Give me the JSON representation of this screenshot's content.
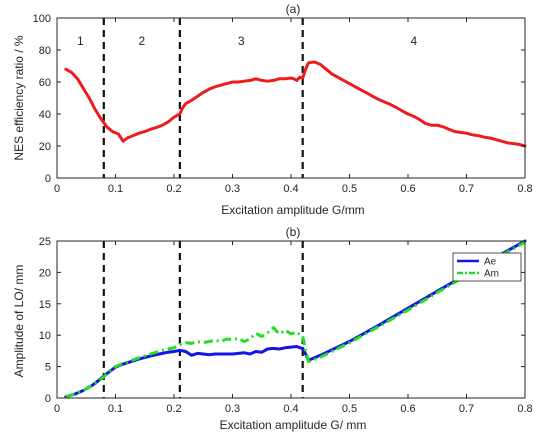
{
  "chart_data": [
    {
      "type": "line",
      "title": "(a)",
      "xlabel": "Excitation amplitude G/mm",
      "ylabel": "NES efficiency ratio / %",
      "xlim": [
        0,
        0.8
      ],
      "ylim": [
        0,
        100
      ],
      "xticks": [
        "0",
        "0.1",
        "0.2",
        "0.3",
        "0.4",
        "0.5",
        "0.6",
        "0.7",
        "0.8"
      ],
      "yticks": [
        "0",
        "20",
        "40",
        "60",
        "80",
        "100"
      ],
      "grid": false,
      "color": "#ee1c1c",
      "series": [
        {
          "x": [
            0.015,
            0.025,
            0.035,
            0.045,
            0.055,
            0.065,
            0.075,
            0.085,
            0.095,
            0.105,
            0.113,
            0.12,
            0.13,
            0.14,
            0.15,
            0.16,
            0.17,
            0.18,
            0.19,
            0.2,
            0.205,
            0.21,
            0.215,
            0.22,
            0.23,
            0.24,
            0.25,
            0.26,
            0.27,
            0.28,
            0.29,
            0.3,
            0.31,
            0.32,
            0.33,
            0.34,
            0.35,
            0.36,
            0.37,
            0.38,
            0.39,
            0.4,
            0.405,
            0.41,
            0.415,
            0.42,
            0.425,
            0.43,
            0.44,
            0.45,
            0.46,
            0.47,
            0.48,
            0.49,
            0.5,
            0.51,
            0.52,
            0.53,
            0.54,
            0.55,
            0.56,
            0.57,
            0.58,
            0.59,
            0.6,
            0.61,
            0.62,
            0.63,
            0.64,
            0.65,
            0.66,
            0.67,
            0.68,
            0.69,
            0.7,
            0.71,
            0.72,
            0.73,
            0.74,
            0.75,
            0.76,
            0.77,
            0.78,
            0.79,
            0.8
          ],
          "y": [
            68,
            66,
            62,
            56,
            50,
            43,
            37,
            32,
            29,
            27.5,
            23,
            25,
            26.5,
            28,
            29,
            30.5,
            31.5,
            33,
            35,
            38,
            39,
            40,
            44,
            46.5,
            48.5,
            51,
            53.5,
            55.5,
            57,
            58,
            59,
            60,
            60,
            60.5,
            61,
            62,
            61,
            60.5,
            61,
            62,
            62,
            62.5,
            62,
            61,
            63,
            62.5,
            68,
            72,
            72.5,
            71,
            68,
            65,
            63,
            61,
            59,
            57,
            55,
            53,
            51,
            49,
            47.5,
            46,
            44,
            42,
            40,
            38.5,
            36.5,
            34,
            33,
            33,
            32,
            30.5,
            29,
            28.5,
            28,
            27,
            26.5,
            25.5,
            25,
            24,
            23,
            22,
            21.5,
            21,
            20
          ]
        }
      ],
      "vlines": [
        0.08,
        0.21,
        0.42
      ],
      "region_labels": [
        "1",
        "2",
        "3",
        "4"
      ]
    },
    {
      "type": "line",
      "title": "(b)",
      "xlabel": "Excitation amplitude G/ mm",
      "ylabel": "Amplitude of LO/ mm",
      "xlim": [
        0,
        0.8
      ],
      "ylim": [
        0,
        25
      ],
      "xticks": [
        "0",
        "0.1",
        "0.2",
        "0.3",
        "0.4",
        "0.5",
        "0.6",
        "0.7",
        "0.8"
      ],
      "yticks": [
        "0",
        "5",
        "10",
        "15",
        "20",
        "25"
      ],
      "grid": false,
      "legend": "top-right",
      "series": [
        {
          "name": "Ae",
          "color": "#1414e6",
          "style": "solid",
          "x": [
            0.015,
            0.03,
            0.045,
            0.06,
            0.07,
            0.08,
            0.09,
            0.1,
            0.11,
            0.12,
            0.14,
            0.16,
            0.18,
            0.19,
            0.2,
            0.21,
            0.22,
            0.23,
            0.24,
            0.25,
            0.26,
            0.27,
            0.28,
            0.29,
            0.3,
            0.31,
            0.32,
            0.33,
            0.34,
            0.35,
            0.36,
            0.37,
            0.38,
            0.39,
            0.4,
            0.41,
            0.415,
            0.42,
            0.425,
            0.43,
            0.45,
            0.5,
            0.55,
            0.6,
            0.65,
            0.7,
            0.75,
            0.8
          ],
          "y": [
            0.2,
            0.6,
            1.2,
            2,
            2.7,
            3.5,
            4.2,
            4.9,
            5.3,
            5.6,
            6.2,
            6.7,
            7.1,
            7.3,
            7.4,
            7.6,
            7.4,
            6.8,
            7.1,
            7.0,
            6.9,
            7.0,
            7.0,
            7.0,
            7.0,
            7.1,
            7.2,
            7.0,
            7.4,
            7.3,
            7.8,
            7.9,
            7.8,
            8.0,
            8.1,
            8.2,
            8.0,
            7.9,
            7.0,
            6.0,
            6.8,
            9.0,
            11.6,
            14.3,
            17.0,
            19.7,
            22.4,
            25.0
          ]
        },
        {
          "name": "Am",
          "color": "#22dd22",
          "style": "dashdot",
          "x": [
            0.015,
            0.03,
            0.045,
            0.06,
            0.07,
            0.08,
            0.09,
            0.1,
            0.11,
            0.12,
            0.14,
            0.16,
            0.18,
            0.19,
            0.2,
            0.21,
            0.22,
            0.23,
            0.24,
            0.25,
            0.26,
            0.27,
            0.28,
            0.29,
            0.3,
            0.31,
            0.32,
            0.33,
            0.34,
            0.35,
            0.36,
            0.37,
            0.38,
            0.39,
            0.4,
            0.41,
            0.415,
            0.42,
            0.425,
            0.43,
            0.45,
            0.5,
            0.55,
            0.6,
            0.65,
            0.7,
            0.75,
            0.8
          ],
          "y": [
            0.2,
            0.6,
            1.2,
            2,
            2.6,
            3.4,
            4.3,
            5.0,
            5.4,
            5.7,
            6.4,
            7.0,
            7.6,
            7.8,
            8.0,
            8.5,
            8.8,
            8.7,
            9.0,
            8.8,
            9.0,
            9.2,
            9.0,
            9.4,
            9.3,
            9.5,
            9.0,
            9.4,
            10.3,
            9.8,
            10.4,
            11.2,
            10.2,
            10.8,
            10.2,
            10.5,
            10.1,
            9.9,
            7.5,
            5.8,
            6.5,
            8.8,
            11.4,
            14.0,
            16.8,
            19.5,
            22.2,
            24.8
          ]
        }
      ],
      "vlines": [
        0.08,
        0.21,
        0.42
      ]
    }
  ]
}
